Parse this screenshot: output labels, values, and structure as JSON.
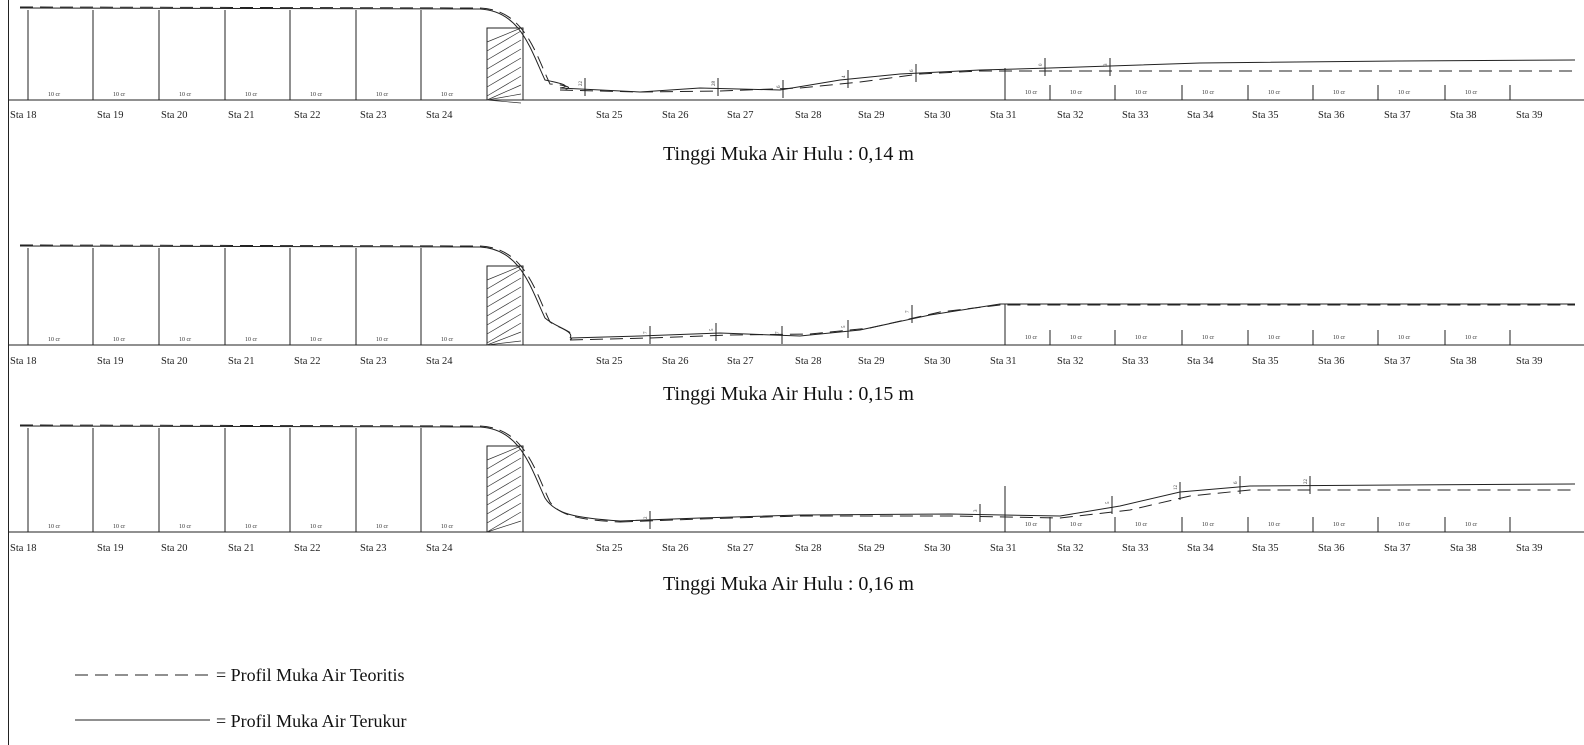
{
  "stations": [
    "Sta 18",
    "Sta 19",
    "Sta 20",
    "Sta 21",
    "Sta 22",
    "Sta 23",
    "Sta 24",
    "Sta 25",
    "Sta 26",
    "Sta 27",
    "Sta 28",
    "Sta 29",
    "Sta 30",
    "Sta 31",
    "Sta 32",
    "Sta 33",
    "Sta 34",
    "Sta 35",
    "Sta 36",
    "Sta 37",
    "Sta 38",
    "Sta 39"
  ],
  "cell_label": "10 cr",
  "panels": [
    {
      "caption": "Tinggi Muka Air Hulu : 0,14 m",
      "small_labels": [
        "22",
        "28",
        "6",
        "4",
        "6",
        "0",
        "3",
        "2",
        "0",
        "1"
      ]
    },
    {
      "caption": "Tinggi Muka Air Hulu : 0,15 m",
      "small_labels": [
        "7",
        "5",
        "7",
        "5",
        "7",
        "5",
        "1",
        "2"
      ]
    },
    {
      "caption": "Tinggi Muka Air Hulu : 0,16 m",
      "small_labels": [
        "2",
        "3",
        "5",
        "12",
        "6",
        "22",
        "5"
      ]
    }
  ],
  "legend": {
    "theoretical": "= Profil Muka Air Teoritis",
    "measured": "= Profil Muka Air Terukur"
  }
}
